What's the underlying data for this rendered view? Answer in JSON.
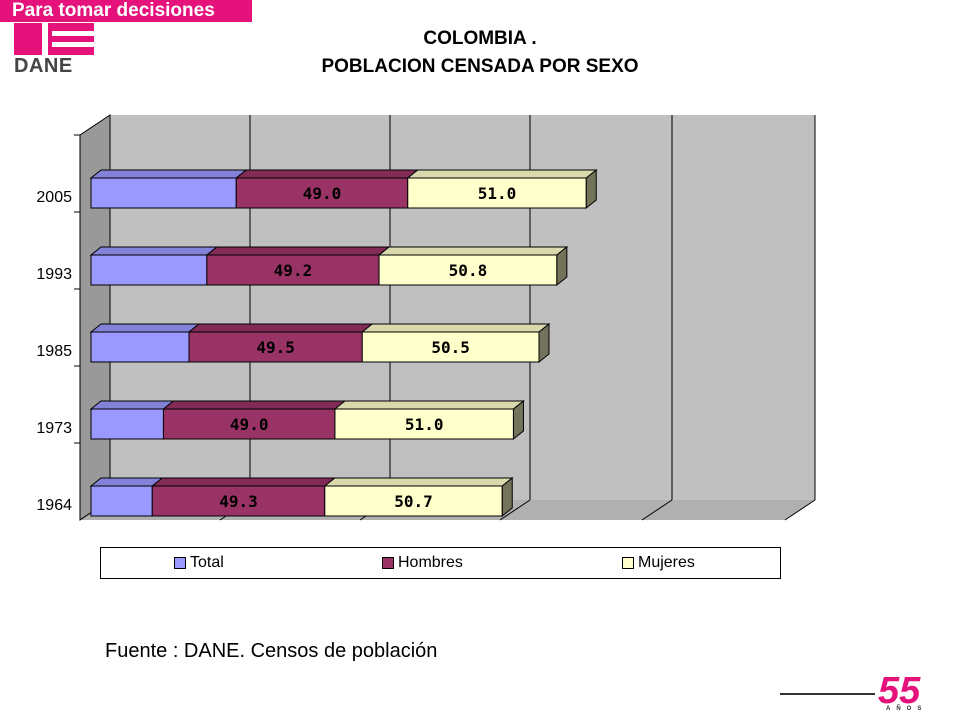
{
  "header": {
    "tagline": "Para tomar decisiones",
    "logo_text": "DANE",
    "brand_color": "#e4127a"
  },
  "titles": {
    "line1": "COLOMBIA .",
    "line2": "POBLACION CENSADA POR SEXO"
  },
  "chart_data": {
    "type": "bar",
    "orientation": "horizontal",
    "stacked": true,
    "three_d": true,
    "title": "COLOMBIA . POBLACION CENSADA POR SEXO",
    "categories": [
      "2005",
      "1993",
      "1985",
      "1973",
      "1964"
    ],
    "series": [
      {
        "name": "Total",
        "color": "#9999ff",
        "values": [
          41.5,
          33.1,
          28.0,
          20.7,
          17.5
        ]
      },
      {
        "name": "Hombres",
        "color": "#993366",
        "values": [
          49.0,
          49.2,
          49.5,
          49.0,
          49.3
        ]
      },
      {
        "name": "Mujeres",
        "color": "#ffffcc",
        "values": [
          51.0,
          50.8,
          50.5,
          51.0,
          50.7
        ]
      }
    ],
    "grid": true,
    "legend_position": "bottom"
  },
  "legend": {
    "items": [
      "Total",
      "Hombres",
      "Mujeres"
    ]
  },
  "source": "Fuente : DANE. Censos de población",
  "anniversary": {
    "number": "55",
    "label": "AÑOS"
  }
}
